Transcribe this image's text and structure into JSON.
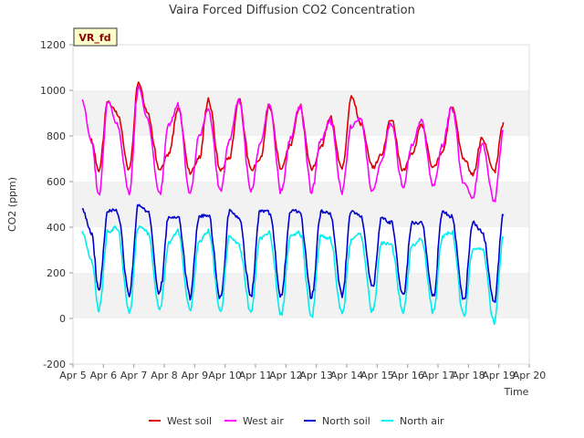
{
  "chart_data": {
    "type": "line",
    "title": "Vaira Forced Diffusion CO2 Concentration",
    "xlabel": "Time",
    "ylabel": "CO2 (ppm)",
    "badge": "VR_fd",
    "ylim": [
      -200,
      1200
    ],
    "yticks": [
      "-200",
      "0",
      "200",
      "400",
      "600",
      "800",
      "1000",
      "1200"
    ],
    "xlim": [
      5,
      20
    ],
    "xticks": [
      "Apr 5",
      "Apr 6",
      "Apr 7",
      "Apr 8",
      "Apr 9",
      "Apr 10",
      "Apr 11",
      "Apr 12",
      "Apr 13",
      "Apr 14",
      "Apr 15",
      "Apr 16",
      "Apr 17",
      "Apr 18",
      "Apr 19",
      "Apr 20"
    ],
    "grid": "horizontal bands",
    "legend_position": "bottom",
    "series": [
      {
        "name": "West soil",
        "color": "#dd0000",
        "x": [
          5.6,
          5.85,
          6.15,
          6.45,
          6.85,
          7.15,
          7.45,
          7.85,
          8.15,
          8.45,
          8.85,
          9.15,
          9.45,
          9.85,
          10.15,
          10.45,
          10.85,
          11.15,
          11.45,
          11.85,
          12.15,
          12.45,
          12.85,
          13.15,
          13.45,
          13.85,
          14.15,
          14.45,
          14.85,
          15.15,
          15.45,
          15.85,
          16.15,
          16.45,
          16.85,
          17.15,
          17.45,
          17.85,
          18.15,
          18.45,
          18.85,
          19.15
        ],
        "values": [
          780,
          650,
          950,
          900,
          650,
          1040,
          900,
          650,
          720,
          920,
          640,
          700,
          960,
          650,
          710,
          960,
          650,
          700,
          930,
          660,
          760,
          930,
          650,
          750,
          880,
          650,
          980,
          860,
          660,
          720,
          880,
          650,
          720,
          850,
          660,
          730,
          930,
          700,
          630,
          790,
          640,
          860
        ]
      },
      {
        "name": "West air",
        "color": "#ff00ff",
        "x": [
          5.3,
          5.6,
          5.85,
          6.15,
          6.45,
          6.85,
          7.15,
          7.45,
          7.85,
          8.15,
          8.45,
          8.85,
          9.15,
          9.45,
          9.85,
          10.15,
          10.45,
          10.85,
          11.15,
          11.45,
          11.85,
          12.15,
          12.45,
          12.85,
          13.15,
          13.45,
          13.85,
          14.15,
          14.45,
          14.85,
          15.15,
          15.45,
          15.85,
          16.15,
          16.45,
          16.85,
          17.15,
          17.45,
          17.85,
          18.15,
          18.45,
          18.85,
          19.15
        ],
        "values": [
          960,
          780,
          540,
          950,
          850,
          550,
          1020,
          870,
          545,
          850,
          930,
          550,
          800,
          920,
          560,
          790,
          960,
          555,
          760,
          940,
          555,
          790,
          930,
          560,
          780,
          870,
          560,
          840,
          880,
          560,
          690,
          860,
          580,
          760,
          870,
          580,
          760,
          930,
          590,
          530,
          760,
          515,
          820
        ]
      },
      {
        "name": "North soil",
        "color": "#0000cc",
        "x": [
          5.3,
          5.6,
          5.85,
          6.15,
          6.45,
          6.85,
          7.15,
          7.45,
          7.85,
          8.15,
          8.45,
          8.85,
          9.15,
          9.45,
          9.85,
          10.15,
          10.45,
          10.85,
          11.15,
          11.45,
          11.85,
          12.15,
          12.45,
          12.85,
          13.15,
          13.45,
          13.85,
          14.15,
          14.45,
          14.85,
          15.15,
          15.45,
          15.85,
          16.15,
          16.45,
          16.85,
          17.15,
          17.45,
          17.85,
          18.15,
          18.45,
          18.85,
          19.15
        ],
        "values": [
          480,
          380,
          120,
          470,
          480,
          100,
          500,
          470,
          110,
          440,
          440,
          100,
          450,
          450,
          95,
          470,
          440,
          95,
          470,
          470,
          90,
          470,
          470,
          90,
          470,
          460,
          100,
          470,
          450,
          140,
          440,
          420,
          100,
          420,
          420,
          100,
          470,
          440,
          80,
          420,
          380,
          70,
          450
        ]
      },
      {
        "name": "North air",
        "color": "#00eeee",
        "x": [
          5.3,
          5.6,
          5.85,
          6.15,
          6.45,
          6.85,
          7.15,
          7.45,
          7.85,
          8.15,
          8.45,
          8.85,
          9.15,
          9.45,
          9.85,
          10.15,
          10.45,
          10.85,
          11.15,
          11.45,
          11.85,
          12.15,
          12.45,
          12.85,
          13.15,
          13.45,
          13.85,
          14.15,
          14.45,
          14.85,
          15.15,
          15.45,
          15.85,
          16.15,
          16.45,
          16.85,
          17.15,
          17.45,
          17.85,
          18.15,
          18.45,
          18.85,
          19.15
        ],
        "values": [
          380,
          260,
          40,
          380,
          400,
          25,
          400,
          380,
          35,
          330,
          380,
          30,
          340,
          380,
          25,
          360,
          330,
          25,
          350,
          370,
          15,
          360,
          380,
          10,
          360,
          350,
          20,
          350,
          370,
          30,
          330,
          330,
          25,
          320,
          350,
          25,
          360,
          380,
          10,
          300,
          310,
          -15,
          350
        ]
      }
    ]
  }
}
